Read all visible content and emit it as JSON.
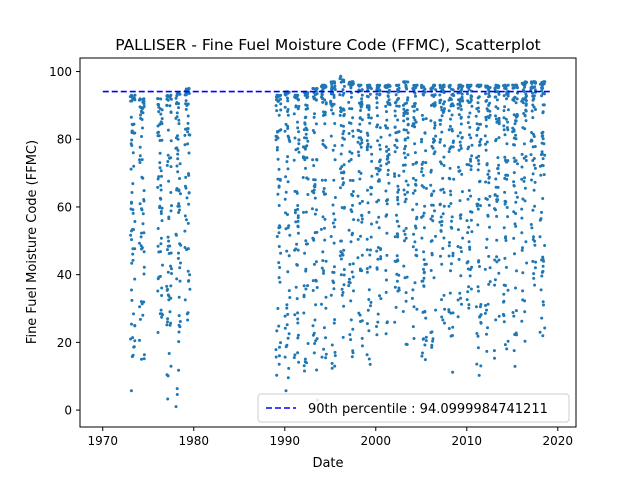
{
  "chart_data": {
    "type": "scatter",
    "title": "PALLISER - Fine Fuel Moisture Code (FFMC), Scatterplot",
    "xlabel": "Date",
    "ylabel": "Fine Fuel Moisture Code (FFMC)",
    "xlim": [
      1967.5,
      2022.0
    ],
    "ylim": [
      -5,
      104
    ],
    "x_ticks": [
      1970,
      1980,
      1990,
      2000,
      2010,
      2020
    ],
    "x_tick_labels": [
      "1970",
      "1980",
      "1990",
      "2000",
      "2010",
      "2020"
    ],
    "y_ticks": [
      0,
      20,
      40,
      60,
      80,
      100
    ],
    "y_tick_labels": [
      "0",
      "20",
      "40",
      "60",
      "80",
      "100"
    ],
    "grid": false,
    "legend_position": "lower-right",
    "series": [
      {
        "kind": "points",
        "color": "#1f77b4",
        "marker_size_note": "small dots",
        "seasons": [
          {
            "year": 1973.3,
            "ffmc_range": [
              5,
              93
            ]
          },
          {
            "year": 1974.3,
            "ffmc_range": [
              14,
              92
            ]
          },
          {
            "year": 1976.3,
            "ffmc_range": [
              22,
              92
            ]
          },
          {
            "year": 1977.3,
            "ffmc_range": [
              2,
              93
            ]
          },
          {
            "year": 1978.3,
            "ffmc_range": [
              0,
              94
            ]
          },
          {
            "year": 1979.3,
            "ffmc_range": [
              26,
              95
            ]
          },
          {
            "year": 1989.3,
            "ffmc_range": [
              5,
              93
            ]
          },
          {
            "year": 1990.3,
            "ffmc_range": [
              2,
              94
            ]
          },
          {
            "year": 1991.3,
            "ffmc_range": [
              7,
              93
            ]
          },
          {
            "year": 1992.3,
            "ffmc_range": [
              10,
              94
            ]
          },
          {
            "year": 1993.3,
            "ffmc_range": [
              3,
              95
            ]
          },
          {
            "year": 1994.3,
            "ffmc_range": [
              12,
              96
            ]
          },
          {
            "year": 1995.3,
            "ffmc_range": [
              9,
              97
            ]
          },
          {
            "year": 1996.3,
            "ffmc_range": [
              18,
              99
            ]
          },
          {
            "year": 1997.3,
            "ffmc_range": [
              15,
              97
            ]
          },
          {
            "year": 1998.3,
            "ffmc_range": [
              17,
              96
            ]
          },
          {
            "year": 1999.3,
            "ffmc_range": [
              11,
              96
            ]
          },
          {
            "year": 2000.3,
            "ffmc_range": [
              20,
              96
            ]
          },
          {
            "year": 2001.3,
            "ffmc_range": [
              22,
              96
            ]
          },
          {
            "year": 2002.3,
            "ffmc_range": [
              25,
              96
            ]
          },
          {
            "year": 2003.3,
            "ffmc_range": [
              18,
              97
            ]
          },
          {
            "year": 2004.3,
            "ffmc_range": [
              21,
              96
            ]
          },
          {
            "year": 2005.3,
            "ffmc_range": [
              10,
              96
            ]
          },
          {
            "year": 2006.3,
            "ffmc_range": [
              15,
              96
            ]
          },
          {
            "year": 2007.3,
            "ffmc_range": [
              20,
              96
            ]
          },
          {
            "year": 2008.3,
            "ffmc_range": [
              10,
              96
            ]
          },
          {
            "year": 2009.3,
            "ffmc_range": [
              22,
              96
            ]
          },
          {
            "year": 2010.3,
            "ffmc_range": [
              28,
              96
            ]
          },
          {
            "year": 2011.3,
            "ffmc_range": [
              10,
              96
            ]
          },
          {
            "year": 2012.3,
            "ffmc_range": [
              15,
              96
            ]
          },
          {
            "year": 2013.3,
            "ffmc_range": [
              11,
              96
            ]
          },
          {
            "year": 2014.3,
            "ffmc_range": [
              18,
              96
            ]
          },
          {
            "year": 2015.3,
            "ffmc_range": [
              12,
              96
            ]
          },
          {
            "year": 2016.3,
            "ffmc_range": [
              20,
              97
            ]
          },
          {
            "year": 2017.3,
            "ffmc_range": [
              24,
              97
            ]
          },
          {
            "year": 2018.3,
            "ffmc_range": [
              20,
              97
            ]
          }
        ]
      },
      {
        "kind": "hline",
        "name": "90th percentile : 94.0999984741211",
        "y": 94.0999984741211,
        "x_range": [
          1970,
          2019.2
        ],
        "color": "#0000ff",
        "style": "dashed"
      }
    ]
  }
}
